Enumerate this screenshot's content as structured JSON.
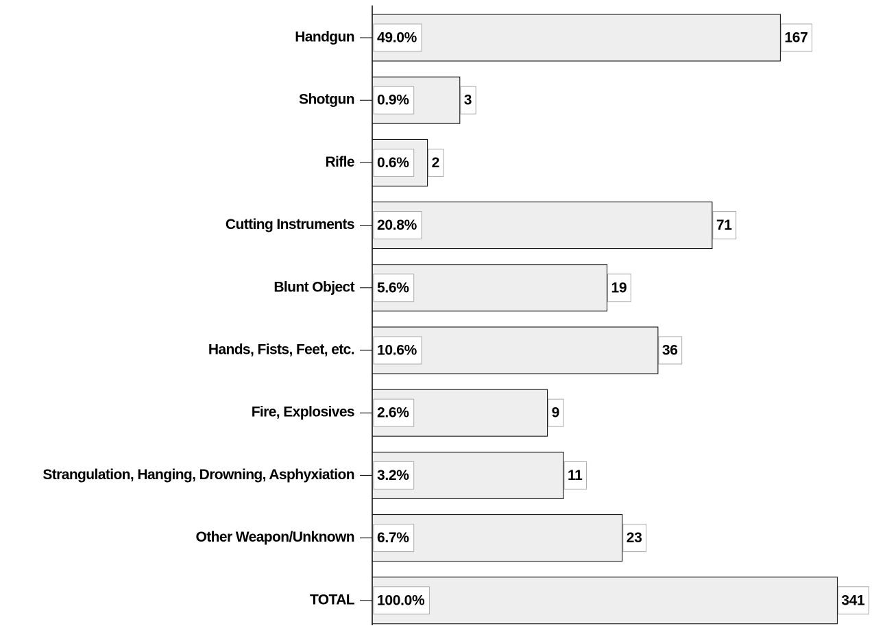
{
  "chart_data": {
    "type": "bar",
    "orientation": "horizontal",
    "categories": [
      "Handgun",
      "Shotgun",
      "Rifle",
      "Cutting Instruments",
      "Blunt Object",
      "Hands, Fists, Feet, etc.",
      "Fire, Explosives",
      "Strangulation, Hanging, Drowning, Asphyxiation",
      "Other Weapon/Unknown",
      "TOTAL"
    ],
    "values": [
      167,
      3,
      2,
      71,
      19,
      36,
      9,
      11,
      23,
      341
    ],
    "percent_labels": [
      "49.0%",
      "0.9%",
      "0.6%",
      "20.8%",
      "5.6%",
      "10.6%",
      "2.6%",
      "3.2%",
      "6.7%",
      "100.0%"
    ],
    "color": "#eeeeee",
    "xscale": "log",
    "xlim": [
      1,
      400
    ]
  }
}
